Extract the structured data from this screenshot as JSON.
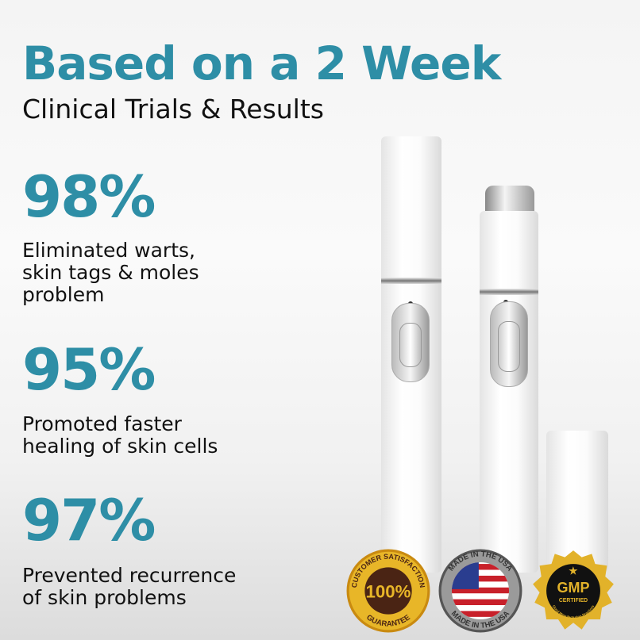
{
  "headline": "Based on a 2 Week",
  "subheadline": "Clinical Trials & Results",
  "stats": [
    {
      "value": "98%",
      "lines": [
        "Eliminated warts,",
        "skin tags & moles",
        "problem"
      ]
    },
    {
      "value": "95%",
      "lines": [
        "Promoted faster",
        "healing of skin cells"
      ]
    },
    {
      "value": "97%",
      "lines": [
        "Prevented recurrence",
        "of skin problems"
      ]
    }
  ],
  "badges": [
    {
      "name": "customer-satisfaction",
      "text_top": "CUSTOMER SATISFACTION",
      "center": "100%",
      "text_bottom": "GUARANTEE"
    },
    {
      "name": "made-in-usa",
      "text_top": "MADE IN THE USA",
      "text_bottom": "MADE IN THE USA"
    },
    {
      "name": "gmp",
      "center": "GMP",
      "sub": "CERTIFIED",
      "text_bottom": "Good Manufacturing Practices"
    }
  ],
  "colors": {
    "accent": "#2e8ea6",
    "gold": "#e8b628",
    "brown": "#4a2414"
  }
}
